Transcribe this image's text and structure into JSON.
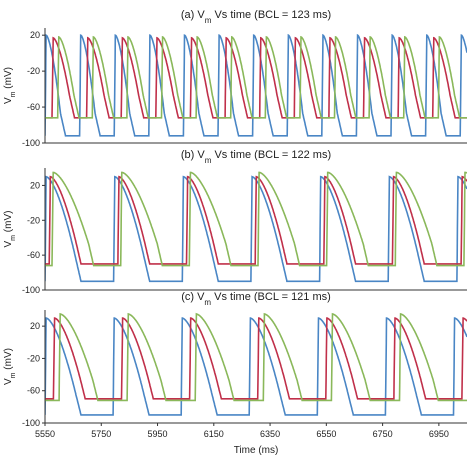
{
  "chart_data": [
    {
      "type": "line",
      "title": "(a) V",
      "title_sub": "m",
      "title_rest": " Vs time (BCL = 123 ms)",
      "ylabel": "V",
      "ylabel_sub": "m",
      "ylabel_rest": " (mV)",
      "ylim": [
        -100,
        28
      ],
      "xlim": [
        5550,
        7050
      ],
      "yticks": [
        20,
        -20,
        -60,
        -100
      ],
      "yticklabels": [
        "20",
        "-20",
        "-60",
        "-100"
      ],
      "bcl": 123,
      "series": [
        {
          "color": "#4a86c5",
          "phase": 0,
          "peak": 20,
          "rest": -92,
          "apd": 55
        },
        {
          "color": "#c0304a",
          "phase": 25,
          "peak": 17,
          "rest": -72,
          "apd": 62
        },
        {
          "color": "#8ab85a",
          "phase": 45,
          "peak": 18,
          "rest": -72,
          "apd": 58
        }
      ]
    },
    {
      "type": "line",
      "title": "(b) V",
      "title_sub": "m",
      "title_rest": " Vs time (BCL = 122 ms)",
      "ylabel": "V",
      "ylabel_sub": "m",
      "ylabel_rest": " (mV)",
      "ylim": [
        -100,
        40
      ],
      "xlim": [
        5550,
        7050
      ],
      "yticks": [
        20,
        -20,
        -60,
        -100
      ],
      "yticklabels": [
        "20",
        "-20",
        "-60",
        "-100"
      ],
      "bcl": 244,
      "series": [
        {
          "color": "#4a86c5",
          "phase": 0,
          "peak": 30,
          "rest": -90,
          "apd": 110
        },
        {
          "color": "#c0304a",
          "phase": 15,
          "peak": 30,
          "rest": -70,
          "apd": 95
        },
        {
          "color": "#8ab85a",
          "phase": 25,
          "peak": 35,
          "rest": -72,
          "apd": 130
        }
      ]
    },
    {
      "type": "line",
      "title": "(c) V",
      "title_sub": "m",
      "title_rest": " Vs time (BCL = 121 ms)",
      "ylabel": "V",
      "ylabel_sub": "m",
      "ylabel_rest": " (mV)",
      "ylim": [
        -100,
        40
      ],
      "xlim": [
        5550,
        7050
      ],
      "yticks": [
        20,
        -20,
        -60,
        -100
      ],
      "yticklabels": [
        "20",
        "-20",
        "-60",
        "-100"
      ],
      "xticks": [
        5550,
        5750,
        5950,
        6150,
        6350,
        6550,
        6750,
        6950
      ],
      "xticklabels": [
        "5550",
        "5750",
        "5950",
        "6150",
        "6350",
        "6550",
        "6750",
        "6950"
      ],
      "xlabel": "Time (ms)",
      "bcl": 242,
      "series": [
        {
          "color": "#4a86c5",
          "phase": 0,
          "peak": 30,
          "rest": -90,
          "apd": 110
        },
        {
          "color": "#c0304a",
          "phase": 30,
          "peak": 30,
          "rest": -70,
          "apd": 95
        },
        {
          "color": "#8ab85a",
          "phase": 50,
          "peak": 35,
          "rest": -72,
          "apd": 120
        }
      ]
    }
  ]
}
